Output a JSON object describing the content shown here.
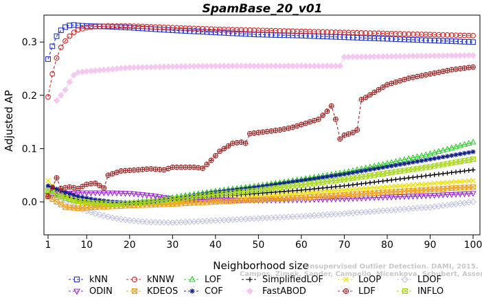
{
  "chart_data": {
    "type": "line",
    "title": "SpamBase_20_v01",
    "xlabel": "Neighborhood size",
    "ylabel": "Adjusted AP",
    "xlim": [
      1,
      100
    ],
    "ylim": [
      -0.05,
      0.34
    ],
    "xticks": [
      1,
      10,
      20,
      30,
      40,
      50,
      60,
      70,
      80,
      90,
      100
    ],
    "yticks": [
      0.0,
      0.1,
      0.2,
      0.3
    ],
    "ytick_labels": [
      "0.0",
      "0.1",
      "0.2",
      "0.3"
    ],
    "legend_position": "bottom",
    "watermark": [
      "Unsupervised Outlier Detection. DAMI, 2015.",
      "Campos, Zimek, Sander, Campello, Micenkova, Schubert, Assent, Houle"
    ],
    "series": [
      {
        "name": "kNN",
        "color": "#1f32d8",
        "marker": "square",
        "dashed": true,
        "knots": [
          [
            1,
            0.268
          ],
          [
            2,
            0.292
          ],
          [
            3,
            0.311
          ],
          [
            4,
            0.322
          ],
          [
            5,
            0.328
          ],
          [
            6,
            0.331
          ],
          [
            7,
            0.332
          ],
          [
            8,
            0.331
          ],
          [
            10,
            0.33
          ],
          [
            15,
            0.329
          ],
          [
            20,
            0.327
          ],
          [
            30,
            0.322
          ],
          [
            40,
            0.318
          ],
          [
            50,
            0.314
          ],
          [
            60,
            0.312
          ],
          [
            70,
            0.309
          ],
          [
            80,
            0.306
          ],
          [
            90,
            0.303
          ],
          [
            100,
            0.3
          ]
        ]
      },
      {
        "name": "kNNW",
        "color": "#d82020",
        "marker": "circle",
        "dashed": true,
        "knots": [
          [
            1,
            0.197
          ],
          [
            2,
            0.24
          ],
          [
            3,
            0.27
          ],
          [
            4,
            0.29
          ],
          [
            5,
            0.302
          ],
          [
            6,
            0.311
          ],
          [
            7,
            0.318
          ],
          [
            8,
            0.323
          ],
          [
            10,
            0.327
          ],
          [
            12,
            0.329
          ],
          [
            15,
            0.33
          ],
          [
            20,
            0.33
          ],
          [
            30,
            0.327
          ],
          [
            40,
            0.324
          ],
          [
            50,
            0.322
          ],
          [
            60,
            0.32
          ],
          [
            70,
            0.318
          ],
          [
            80,
            0.316
          ],
          [
            90,
            0.314
          ],
          [
            100,
            0.312
          ]
        ]
      },
      {
        "name": "LOF",
        "color": "#28d028",
        "marker": "triangle-up",
        "dashed": false,
        "knots": [
          [
            1,
            0.02
          ],
          [
            3,
            0.012
          ],
          [
            5,
            0.006
          ],
          [
            8,
            0.0
          ],
          [
            12,
            -0.004
          ],
          [
            16,
            -0.004
          ],
          [
            20,
            -0.002
          ],
          [
            25,
            0.002
          ],
          [
            30,
            0.008
          ],
          [
            40,
            0.02
          ],
          [
            50,
            0.03
          ],
          [
            60,
            0.042
          ],
          [
            70,
            0.055
          ],
          [
            80,
            0.072
          ],
          [
            90,
            0.09
          ],
          [
            100,
            0.112
          ]
        ]
      },
      {
        "name": "SimplifiedLOF",
        "color": "#000000",
        "marker": "plus",
        "dashed": false,
        "knots": [
          [
            1,
            0.03
          ],
          [
            3,
            0.02
          ],
          [
            5,
            0.012
          ],
          [
            8,
            0.004
          ],
          [
            12,
            -0.002
          ],
          [
            16,
            -0.003
          ],
          [
            20,
            -0.003
          ],
          [
            25,
            -0.002
          ],
          [
            30,
            0.0
          ],
          [
            35,
            0.005
          ],
          [
            40,
            0.01
          ],
          [
            50,
            0.016
          ],
          [
            60,
            0.022
          ],
          [
            70,
            0.03
          ],
          [
            80,
            0.04
          ],
          [
            90,
            0.05
          ],
          [
            100,
            0.06
          ]
        ]
      },
      {
        "name": "LoOP",
        "color": "#f0e000",
        "marker": "x",
        "dashed": false,
        "knots": [
          [
            1,
            0.04
          ],
          [
            3,
            0.02
          ],
          [
            5,
            0.008
          ],
          [
            8,
            -0.002
          ],
          [
            12,
            -0.005
          ],
          [
            16,
            -0.006
          ],
          [
            20,
            -0.005
          ],
          [
            30,
            -0.002
          ],
          [
            40,
            0.004
          ],
          [
            50,
            0.01
          ],
          [
            60,
            0.016
          ],
          [
            70,
            0.022
          ],
          [
            80,
            0.028
          ],
          [
            90,
            0.034
          ],
          [
            100,
            0.04
          ]
        ]
      },
      {
        "name": "LDOF",
        "color": "#c0c4e0",
        "marker": "diamond",
        "dashed": false,
        "knots": [
          [
            1,
            0.025
          ],
          [
            3,
            0.01
          ],
          [
            5,
            -0.002
          ],
          [
            8,
            -0.012
          ],
          [
            12,
            -0.022
          ],
          [
            16,
            -0.03
          ],
          [
            20,
            -0.035
          ],
          [
            25,
            -0.038
          ],
          [
            30,
            -0.039
          ],
          [
            35,
            -0.037
          ],
          [
            40,
            -0.035
          ],
          [
            50,
            -0.031
          ],
          [
            60,
            -0.027
          ],
          [
            70,
            -0.022
          ],
          [
            80,
            -0.016
          ],
          [
            90,
            -0.01
          ],
          [
            100,
            0.0
          ]
        ]
      },
      {
        "name": "ODIN",
        "color": "#9a20d8",
        "marker": "triangle-down",
        "dashed": false,
        "knots": [
          [
            1,
            0.012
          ],
          [
            3,
            0.014
          ],
          [
            5,
            0.016
          ],
          [
            8,
            0.017
          ],
          [
            12,
            0.017
          ],
          [
            16,
            0.017
          ],
          [
            20,
            0.016
          ],
          [
            25,
            0.012
          ],
          [
            30,
            0.006
          ],
          [
            40,
            0.004
          ],
          [
            50,
            0.003
          ],
          [
            60,
            0.004
          ],
          [
            70,
            0.006
          ],
          [
            80,
            0.009
          ],
          [
            90,
            0.012
          ],
          [
            100,
            0.016
          ]
        ]
      },
      {
        "name": "KDEOS",
        "color": "#f0a020",
        "marker": "square-x",
        "dashed": false,
        "knots": [
          [
            1,
            0.01
          ],
          [
            3,
            0.0
          ],
          [
            5,
            -0.01
          ],
          [
            8,
            -0.012
          ],
          [
            12,
            -0.01
          ],
          [
            20,
            -0.007
          ],
          [
            30,
            -0.004
          ],
          [
            40,
            0.0
          ],
          [
            50,
            0.004
          ],
          [
            60,
            0.008
          ],
          [
            70,
            0.013
          ],
          [
            80,
            0.018
          ],
          [
            90,
            0.023
          ],
          [
            100,
            0.028
          ]
        ]
      },
      {
        "name": "COF",
        "color": "#10208a",
        "marker": "star",
        "dashed": false,
        "knots": [
          [
            1,
            0.03
          ],
          [
            3,
            0.024
          ],
          [
            5,
            0.018
          ],
          [
            8,
            0.01
          ],
          [
            12,
            0.004
          ],
          [
            16,
            0.0
          ],
          [
            20,
            -0.002
          ],
          [
            25,
            0.0
          ],
          [
            30,
            0.006
          ],
          [
            40,
            0.018
          ],
          [
            50,
            0.028
          ],
          [
            60,
            0.04
          ],
          [
            70,
            0.052
          ],
          [
            80,
            0.066
          ],
          [
            90,
            0.08
          ],
          [
            100,
            0.094
          ]
        ]
      },
      {
        "name": "FastABOD",
        "color": "#f4c8f0",
        "marker": "diamond-fill",
        "dashed": false,
        "knots": [
          [
            3,
            0.19
          ],
          [
            4,
            0.2
          ],
          [
            5,
            0.21
          ],
          [
            6,
            0.225
          ],
          [
            7,
            0.238
          ],
          [
            8,
            0.243
          ],
          [
            10,
            0.245
          ],
          [
            20,
            0.252
          ],
          [
            25,
            0.253
          ],
          [
            30,
            0.254
          ],
          [
            40,
            0.255
          ],
          [
            50,
            0.255
          ],
          [
            60,
            0.255
          ],
          [
            69,
            0.255
          ],
          [
            70,
            0.272
          ],
          [
            80,
            0.273
          ],
          [
            90,
            0.274
          ],
          [
            100,
            0.275
          ]
        ]
      },
      {
        "name": "LDF",
        "color": "#a02828",
        "marker": "circle-plus",
        "dashed": true,
        "knots": [
          [
            1,
            0.01
          ],
          [
            3,
            0.045
          ],
          [
            4,
            0.025
          ],
          [
            6,
            0.028
          ],
          [
            8,
            0.025
          ],
          [
            10,
            0.033
          ],
          [
            12,
            0.035
          ],
          [
            14,
            0.026
          ],
          [
            15,
            0.05
          ],
          [
            18,
            0.058
          ],
          [
            20,
            0.059
          ],
          [
            25,
            0.062
          ],
          [
            28,
            0.06
          ],
          [
            30,
            0.065
          ],
          [
            35,
            0.065
          ],
          [
            37,
            0.063
          ],
          [
            39,
            0.078
          ],
          [
            41,
            0.095
          ],
          [
            44,
            0.11
          ],
          [
            46,
            0.112
          ],
          [
            47,
            0.11
          ],
          [
            48,
            0.128
          ],
          [
            50,
            0.13
          ],
          [
            55,
            0.135
          ],
          [
            58,
            0.14
          ],
          [
            60,
            0.145
          ],
          [
            64,
            0.155
          ],
          [
            66,
            0.17
          ],
          [
            67,
            0.18
          ],
          [
            68,
            0.155
          ],
          [
            69,
            0.118
          ],
          [
            70,
            0.125
          ],
          [
            72,
            0.13
          ],
          [
            73,
            0.135
          ],
          [
            74,
            0.192
          ],
          [
            75,
            0.196
          ],
          [
            80,
            0.22
          ],
          [
            85,
            0.232
          ],
          [
            90,
            0.24
          ],
          [
            95,
            0.248
          ],
          [
            100,
            0.253
          ]
        ]
      },
      {
        "name": "INFLO",
        "color": "#a8d820",
        "marker": "square-x",
        "dashed": false,
        "knots": [
          [
            1,
            0.022
          ],
          [
            3,
            0.014
          ],
          [
            5,
            0.008
          ],
          [
            8,
            0.002
          ],
          [
            12,
            -0.002
          ],
          [
            16,
            -0.004
          ],
          [
            20,
            -0.003
          ],
          [
            25,
            0.0
          ],
          [
            30,
            0.005
          ],
          [
            40,
            0.014
          ],
          [
            50,
            0.022
          ],
          [
            60,
            0.032
          ],
          [
            70,
            0.042
          ],
          [
            80,
            0.054
          ],
          [
            90,
            0.066
          ],
          [
            100,
            0.08
          ]
        ]
      }
    ]
  }
}
